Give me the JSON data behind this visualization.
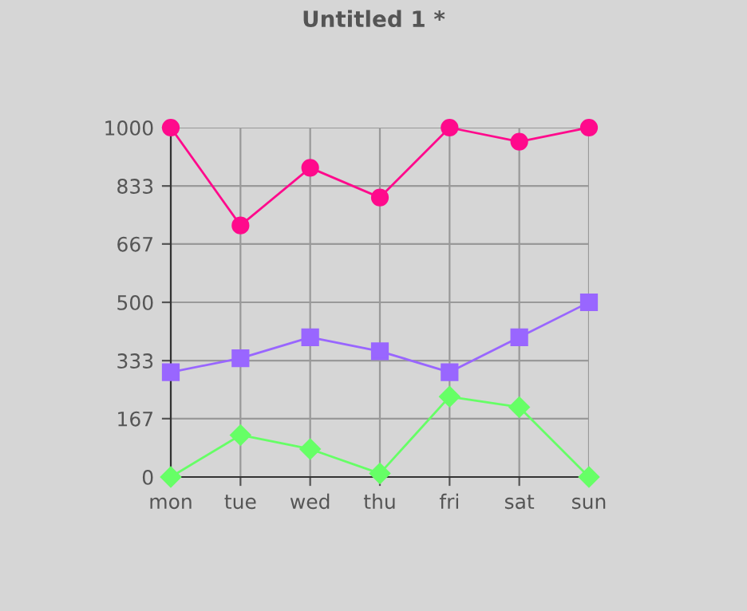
{
  "chart_data": {
    "type": "line",
    "title": "Untitled 1 *",
    "categories": [
      "mon",
      "tue",
      "wed",
      "thu",
      "fri",
      "sat",
      "sun"
    ],
    "series": [
      {
        "color": "#ff0a8c",
        "marker": "circle",
        "values": [
          1000,
          720,
          885,
          800,
          1000,
          960,
          1000
        ]
      },
      {
        "color": "#9966ff",
        "marker": "square",
        "values": [
          300,
          340,
          400,
          360,
          300,
          400,
          500
        ]
      },
      {
        "color": "#66ff66",
        "marker": "diamond",
        "values": [
          0,
          120,
          80,
          10,
          230,
          200,
          0
        ]
      }
    ],
    "ylim": [
      0,
      1000
    ],
    "yticks": [
      0,
      167,
      333,
      500,
      667,
      833,
      1000
    ],
    "grid": true,
    "legend": false
  }
}
